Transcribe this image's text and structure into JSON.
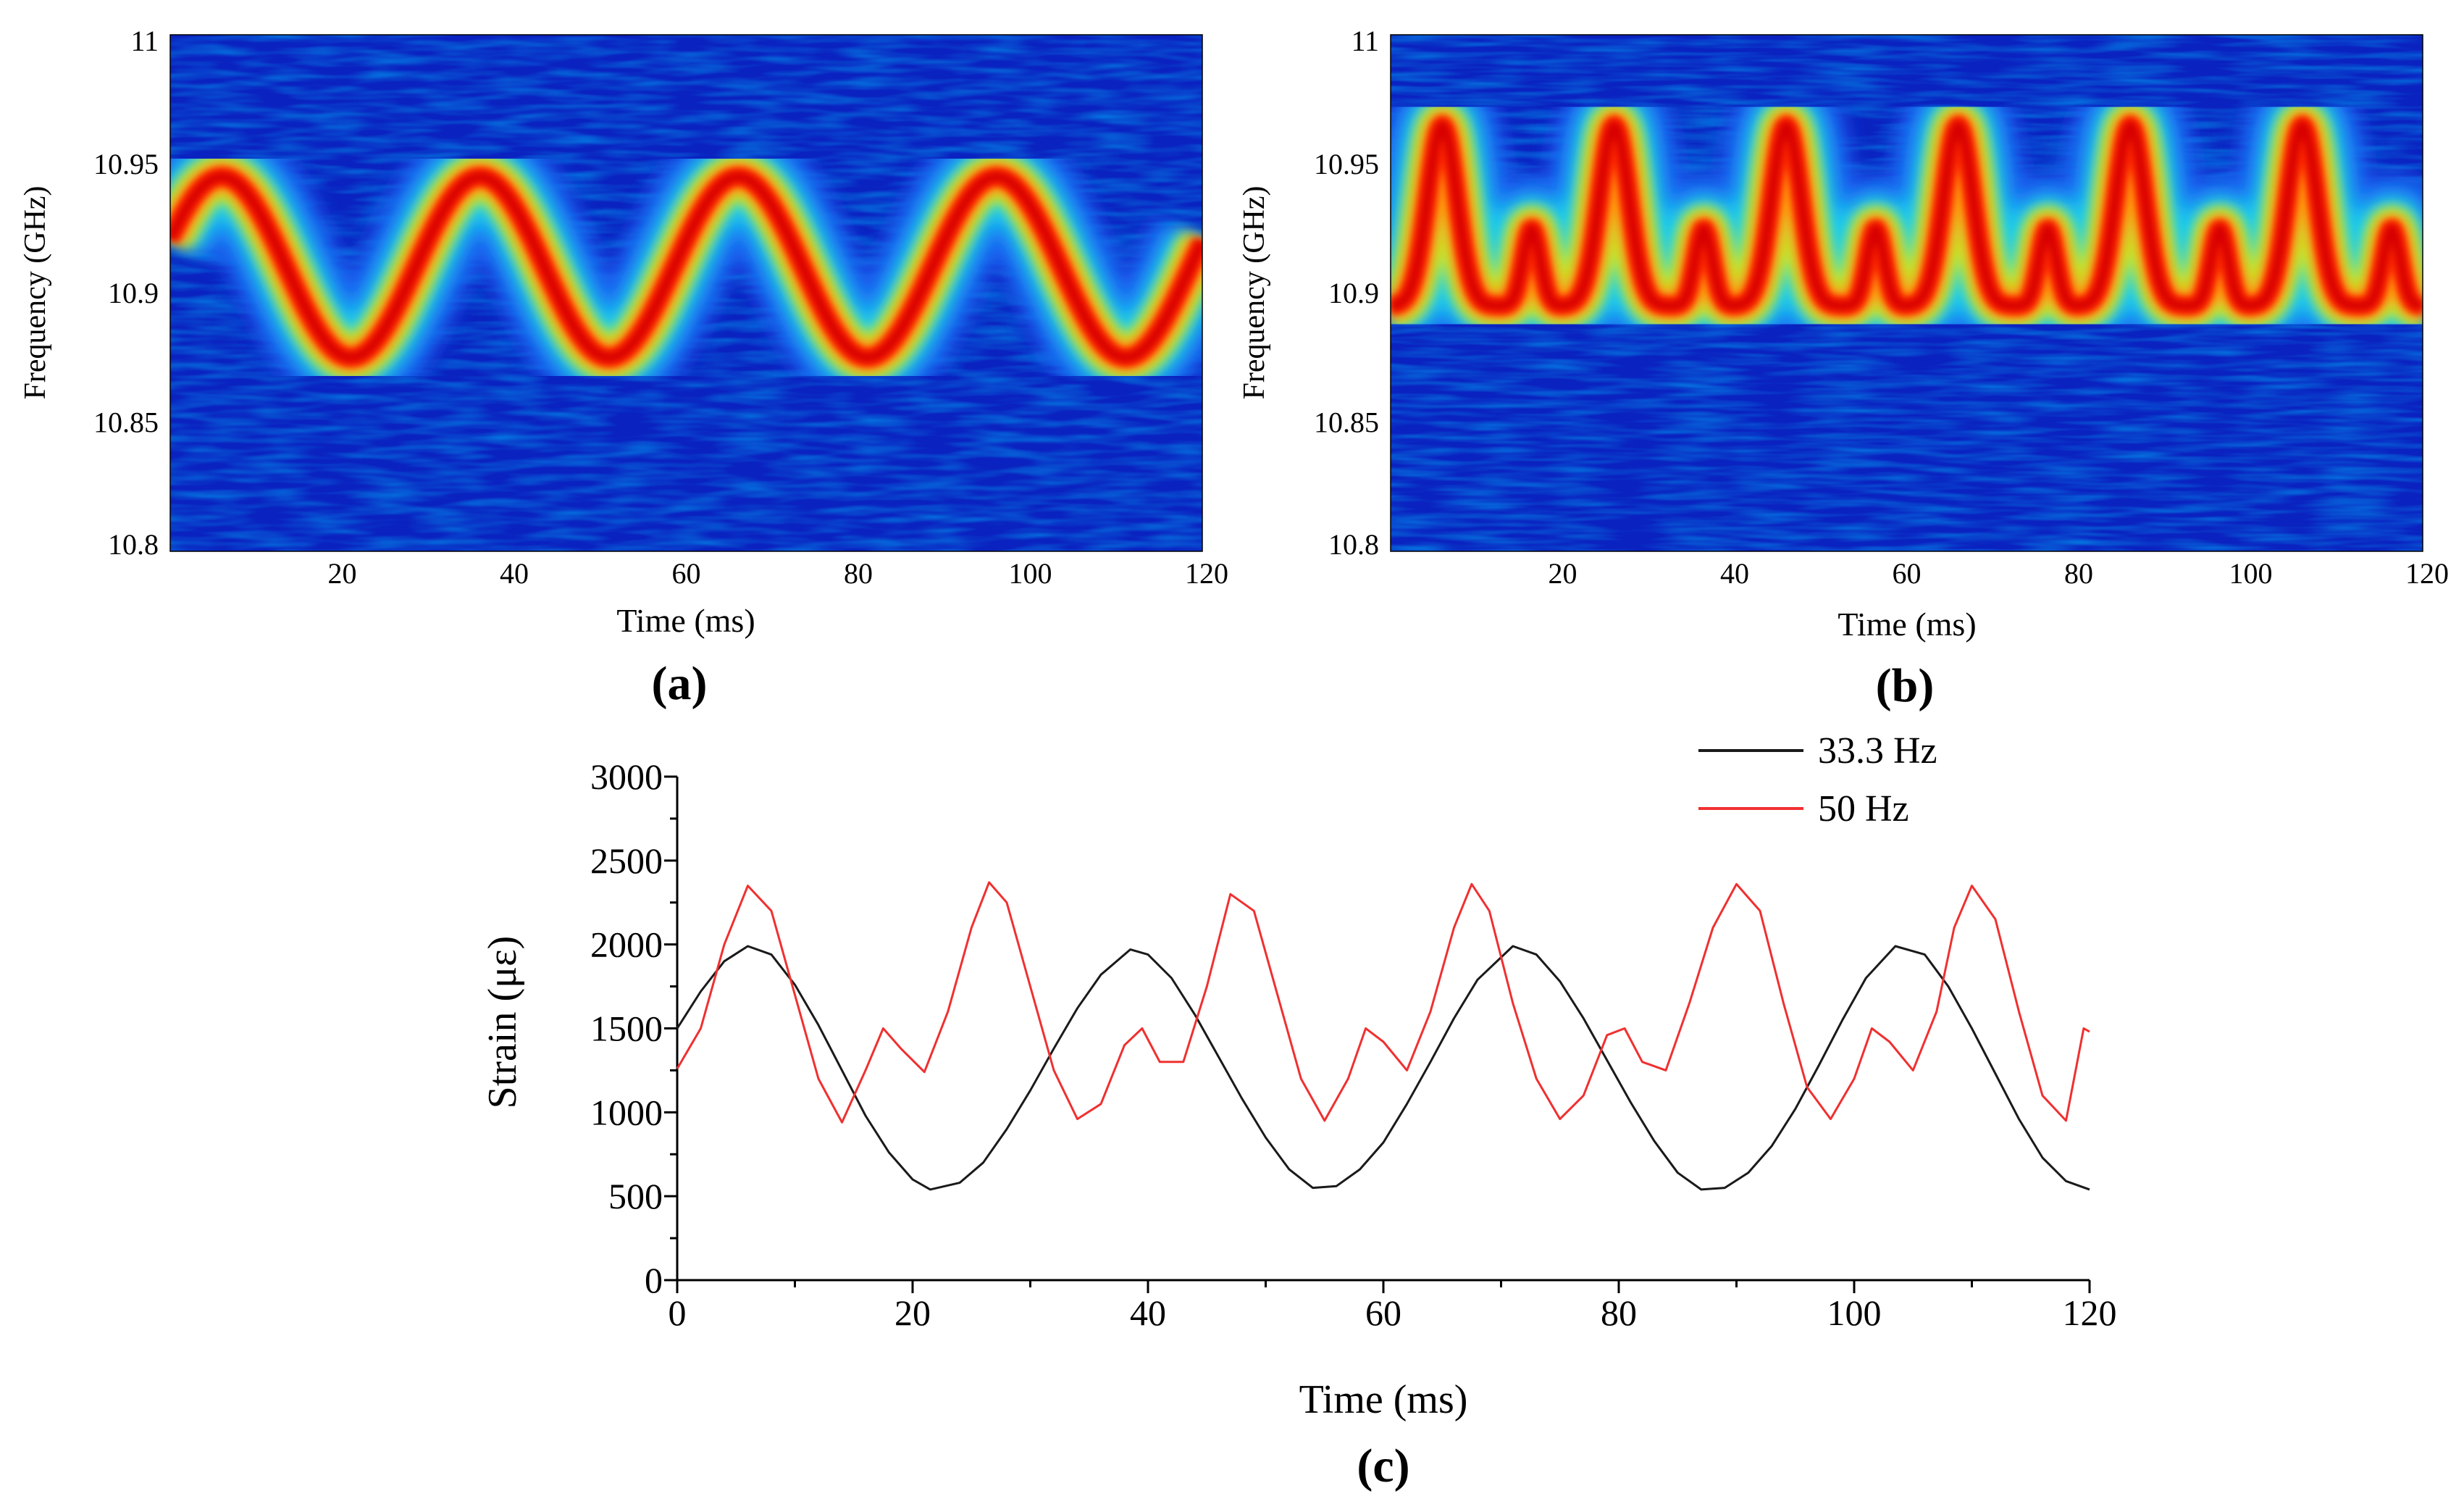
{
  "chart_data": [
    {
      "id": "a",
      "type": "heatmap",
      "panel_label": "(a)",
      "xlabel": "Time (ms)",
      "ylabel": "Frequency (GHz)",
      "xlim": [
        0,
        120
      ],
      "ylim": [
        10.8,
        11
      ],
      "x_ticks": [
        "20",
        "40",
        "60",
        "80",
        "100",
        "120"
      ],
      "y_ticks": [
        "10.8",
        "10.85",
        "10.9",
        "10.95",
        "11"
      ],
      "colormap": [
        "#0a1fb8",
        "#1e5cf0",
        "#19c9f2",
        "#b8f53a",
        "#ff9a10",
        "#ff2a00",
        "#d80000"
      ],
      "ridge": {
        "kind": "sine",
        "frequency_hz": 33.3,
        "center_ghz": 10.91,
        "amplitude_ghz": 0.035,
        "phase_peak_ms": 6
      }
    },
    {
      "id": "b",
      "type": "heatmap",
      "panel_label": "(b)",
      "xlabel": "Time (ms)",
      "ylabel": "Frequency (GHz)",
      "xlim": [
        0,
        120
      ],
      "ylim": [
        10.8,
        11
      ],
      "x_ticks": [
        "20",
        "40",
        "60",
        "80",
        "100",
        "120"
      ],
      "y_ticks": [
        "10.8",
        "10.85",
        "10.9",
        "10.95",
        "11"
      ],
      "colormap": [
        "#0a1fb8",
        "#1e5cf0",
        "#19c9f2",
        "#b8f53a",
        "#ff9a10",
        "#ff2a00",
        "#d80000"
      ],
      "ridge": {
        "kind": "double-peak",
        "frequency_hz": 50,
        "peak_ghz": 10.965,
        "minor_peak_ghz": 10.925,
        "trough_ghz": 10.895,
        "phase_peak_ms": 6
      }
    },
    {
      "id": "c",
      "type": "line",
      "panel_label": "(c)",
      "xlabel": "Time (ms)",
      "ylabel": "Strain (με)",
      "xlim": [
        0,
        120
      ],
      "ylim": [
        0,
        3000
      ],
      "x_ticks": [
        "0",
        "20",
        "40",
        "60",
        "80",
        "100",
        "120"
      ],
      "y_ticks": [
        "0",
        "500",
        "1000",
        "1500",
        "2000",
        "2500",
        "3000"
      ],
      "series": [
        {
          "name": "33.3 Hz",
          "color": "#1a1a1a",
          "x": [
            0,
            2,
            4,
            6,
            8,
            10,
            12,
            14,
            16,
            18,
            20,
            21.5,
            24,
            26,
            28,
            30,
            32,
            34,
            36,
            38.5,
            40,
            42,
            44,
            46,
            48,
            50,
            52,
            54,
            56,
            58,
            60,
            62,
            64,
            66,
            68,
            71,
            73,
            75,
            77,
            79,
            81,
            83,
            85,
            87,
            89,
            91,
            93,
            95,
            97,
            99,
            101,
            103.5,
            106,
            108,
            110,
            112,
            114,
            116,
            118,
            120
          ],
          "values": [
            1500,
            1720,
            1900,
            1990,
            1940,
            1760,
            1520,
            1250,
            980,
            760,
            600,
            540,
            580,
            700,
            900,
            1130,
            1380,
            1620,
            1820,
            1970,
            1940,
            1800,
            1580,
            1330,
            1080,
            850,
            660,
            550,
            560,
            660,
            820,
            1050,
            1300,
            1560,
            1790,
            1990,
            1940,
            1780,
            1560,
            1310,
            1060,
            830,
            640,
            540,
            550,
            640,
            800,
            1020,
            1280,
            1550,
            1800,
            1990,
            1940,
            1750,
            1500,
            1230,
            960,
            730,
            590,
            540
          ]
        },
        {
          "name": "50 Hz",
          "color": "#f03030",
          "x": [
            0,
            2,
            4,
            6,
            8,
            10,
            12,
            14,
            16,
            17.5,
            19,
            21,
            23,
            25,
            26.5,
            28,
            30,
            32,
            34,
            36,
            38,
            39.5,
            41,
            43,
            45,
            47,
            49,
            51,
            53,
            55,
            57,
            58.5,
            60,
            62,
            64,
            66,
            67.5,
            69,
            71,
            73,
            75,
            77,
            79,
            80.5,
            82,
            84,
            86,
            88,
            90,
            92,
            94,
            96,
            98,
            100,
            101.5,
            103,
            105,
            107,
            108.5,
            110,
            112,
            114,
            116,
            118,
            119.5,
            120
          ],
          "values": [
            1260,
            1500,
            2000,
            2350,
            2200,
            1700,
            1200,
            940,
            1250,
            1500,
            1380,
            1240,
            1600,
            2100,
            2370,
            2250,
            1750,
            1250,
            960,
            1050,
            1400,
            1500,
            1300,
            1300,
            1750,
            2300,
            2200,
            1700,
            1200,
            950,
            1200,
            1500,
            1420,
            1250,
            1600,
            2100,
            2360,
            2200,
            1650,
            1200,
            960,
            1100,
            1460,
            1500,
            1300,
            1250,
            1650,
            2100,
            2360,
            2200,
            1650,
            1150,
            960,
            1200,
            1500,
            1420,
            1250,
            1600,
            2100,
            2350,
            2150,
            1600,
            1100,
            950,
            1500,
            1480
          ]
        }
      ]
    }
  ]
}
